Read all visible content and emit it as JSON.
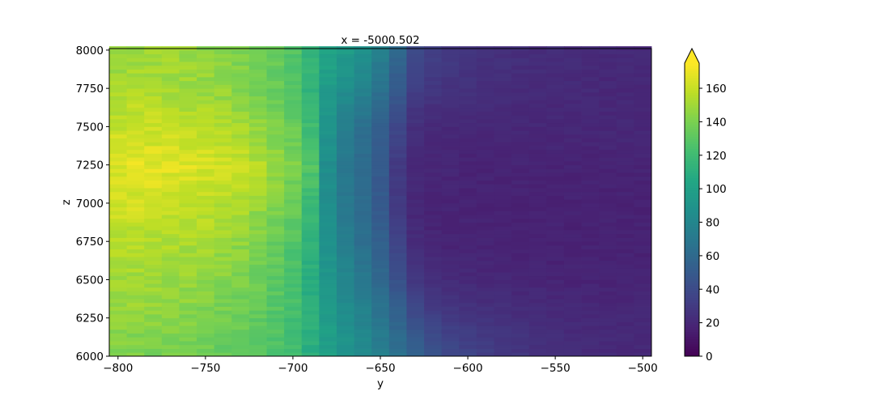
{
  "chart_data": {
    "type": "heatmap",
    "title": "x = -5000.502",
    "xlabel": "y",
    "ylabel": "z",
    "xlim": [
      -805,
      -495
    ],
    "ylim": [
      6000,
      8010
    ],
    "x_ticks": [
      -800,
      -750,
      -700,
      -650,
      -600,
      -550,
      -500
    ],
    "x_tick_labels": [
      "−800",
      "−750",
      "−700",
      "−650",
      "−600",
      "−550",
      "−500"
    ],
    "y_ticks": [
      6000,
      6250,
      6500,
      6750,
      7000,
      7250,
      7500,
      7750,
      8000
    ],
    "y_tick_labels": [
      "6000",
      "6250",
      "6500",
      "6750",
      "7000",
      "7250",
      "7500",
      "7750",
      "8000"
    ],
    "colormap": "viridis",
    "colorbar": {
      "vmin": 0,
      "vmax": 175,
      "extend": "max",
      "ticks": [
        0,
        20,
        40,
        60,
        80,
        100,
        120,
        140,
        160
      ],
      "tick_labels": [
        "0",
        "20",
        "40",
        "60",
        "80",
        "100",
        "120",
        "140",
        "160"
      ]
    },
    "grid": false,
    "y_columns": [
      -800,
      -790,
      -780,
      -770,
      -760,
      -750,
      -740,
      -730,
      -720,
      -710,
      -700,
      -690,
      -680,
      -670,
      -660,
      -650,
      -640,
      -630,
      -620,
      -610,
      -600,
      -590,
      -580,
      -570,
      -560,
      -550,
      -540,
      -530,
      -520,
      -510,
      -500
    ],
    "column_width": 10,
    "z_levels": [
      6000,
      6250,
      6500,
      6750,
      7000,
      7250,
      7500,
      7750,
      8000
    ],
    "values_by_z_level": [
      [
        140,
        140,
        139,
        138,
        137,
        135,
        133,
        131,
        128,
        125,
        120,
        110,
        100,
        92,
        85,
        76,
        66,
        56,
        46,
        40,
        36,
        33,
        30,
        28,
        26,
        24,
        23,
        22,
        22,
        21,
        21
      ],
      [
        146,
        146,
        145,
        144,
        143,
        141,
        139,
        136,
        132,
        128,
        122,
        110,
        96,
        86,
        78,
        68,
        56,
        42,
        34,
        30,
        28,
        26,
        25,
        24,
        23,
        22,
        21,
        21,
        20,
        20,
        20
      ],
      [
        150,
        150,
        149,
        148,
        147,
        145,
        143,
        140,
        136,
        131,
        124,
        110,
        92,
        80,
        71,
        60,
        44,
        28,
        24,
        22,
        21,
        20,
        20,
        19,
        19,
        18,
        18,
        18,
        18,
        18,
        18
      ],
      [
        155,
        156,
        155,
        154,
        153,
        151,
        149,
        146,
        141,
        135,
        127,
        112,
        88,
        74,
        64,
        54,
        36,
        22,
        19,
        18,
        18,
        18,
        17,
        17,
        17,
        17,
        17,
        17,
        17,
        17,
        17
      ],
      [
        162,
        163,
        162,
        161,
        160,
        158,
        156,
        153,
        148,
        142,
        135,
        118,
        86,
        70,
        62,
        50,
        30,
        20,
        18,
        18,
        18,
        17,
        17,
        17,
        17,
        17,
        17,
        17,
        17,
        17,
        17
      ],
      [
        166,
        168,
        168,
        167,
        167,
        165,
        163,
        160,
        156,
        150,
        141,
        128,
        86,
        70,
        62,
        50,
        30,
        21,
        19,
        19,
        18,
        18,
        18,
        18,
        18,
        18,
        18,
        18,
        18,
        18,
        18
      ],
      [
        160,
        161,
        160,
        159,
        158,
        156,
        154,
        151,
        147,
        141,
        135,
        120,
        90,
        74,
        64,
        54,
        38,
        24,
        21,
        20,
        20,
        20,
        20,
        20,
        20,
        20,
        20,
        20,
        20,
        20,
        20
      ],
      [
        152,
        153,
        152,
        151,
        150,
        148,
        146,
        143,
        139,
        134,
        128,
        114,
        96,
        86,
        78,
        66,
        50,
        32,
        28,
        26,
        25,
        24,
        23,
        22,
        22,
        21,
        21,
        21,
        20,
        20,
        20
      ],
      [
        148,
        150,
        150,
        149,
        148,
        146,
        144,
        141,
        138,
        134,
        128,
        116,
        104,
        96,
        88,
        76,
        60,
        40,
        34,
        30,
        28,
        26,
        25,
        24,
        23,
        23,
        22,
        22,
        21,
        21,
        21
      ]
    ]
  }
}
